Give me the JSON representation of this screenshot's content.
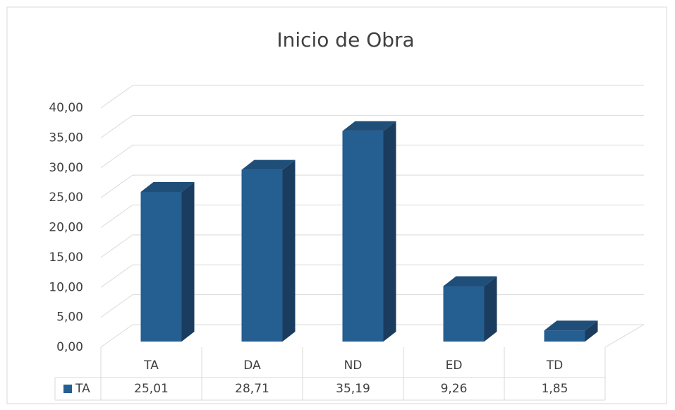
{
  "chart_data": {
    "type": "bar3d",
    "title": "Inicio de Obra",
    "categories": [
      "TA",
      "DA",
      "ND",
      "ED",
      "TD"
    ],
    "series": [
      {
        "name": "TA",
        "color": "#255e91",
        "values": [
          25.01,
          28.71,
          35.19,
          9.26,
          1.85
        ],
        "value_labels": [
          "25,01",
          "28,71",
          "35,19",
          "9,26",
          "1,85"
        ]
      }
    ],
    "ylim": [
      0,
      40
    ],
    "yticks": [
      {
        "value": 0,
        "label": "0,00"
      },
      {
        "value": 5,
        "label": "5,00"
      },
      {
        "value": 10,
        "label": "10,00"
      },
      {
        "value": 15,
        "label": "15,00"
      },
      {
        "value": 20,
        "label": "20,00"
      },
      {
        "value": 25,
        "label": "25,00"
      },
      {
        "value": 30,
        "label": "30,00"
      },
      {
        "value": 35,
        "label": "35,00"
      },
      {
        "value": 40,
        "label": "40,00"
      }
    ],
    "grid": true
  }
}
